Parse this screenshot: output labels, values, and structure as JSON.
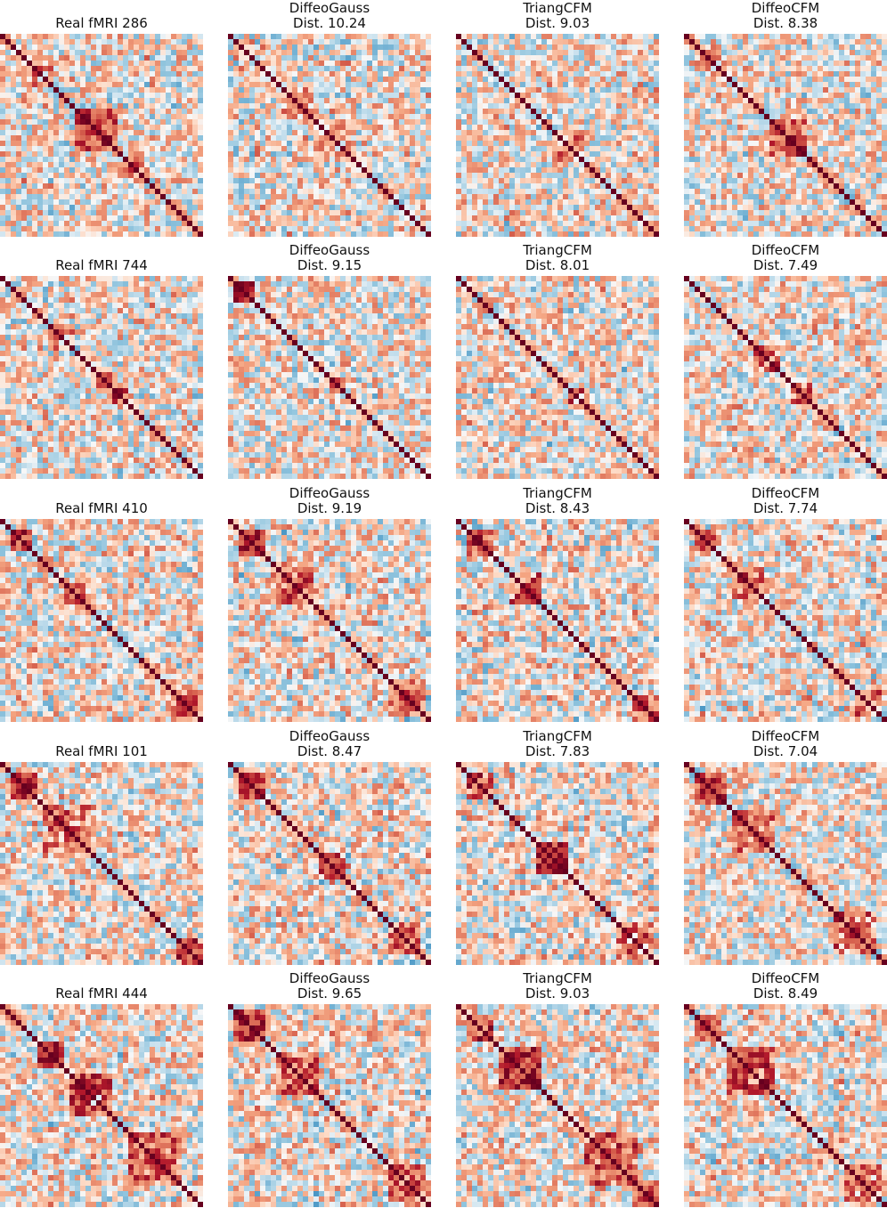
{
  "chart_data": [
    {
      "type": "heatmap",
      "row": 0,
      "col": 0,
      "title_line1": "Real fMRI 286",
      "title_line2": "",
      "matrix_size": 38,
      "seed": 286,
      "blocks": [
        [
          4,
          6,
          0.4
        ],
        [
          14,
          8,
          0.55
        ],
        [
          22,
          5,
          0.35
        ]
      ],
      "diag_color": "#67001f",
      "colorscale": "RdBu_r",
      "vlim": [
        -1,
        1
      ]
    },
    {
      "type": "heatmap",
      "row": 0,
      "col": 1,
      "title_line1": "DiffeoGauss",
      "title_line2": "Dist. 10.24",
      "matrix_size": 38,
      "seed": 1287,
      "blocks": [
        [
          10,
          6,
          0.25
        ]
      ],
      "diag_color": "#67001f",
      "colorscale": "RdBu_r",
      "vlim": [
        -1,
        1
      ]
    },
    {
      "type": "heatmap",
      "row": 0,
      "col": 2,
      "title_line1": "TriangCFM",
      "title_line2": "Dist. 9.03",
      "matrix_size": 38,
      "seed": 2288,
      "blocks": [
        [
          18,
          6,
          0.3
        ]
      ],
      "diag_color": "#67001f",
      "colorscale": "RdBu_r",
      "vlim": [
        -1,
        1
      ]
    },
    {
      "type": "heatmap",
      "row": 0,
      "col": 3,
      "title_line1": "DiffeoCFM",
      "title_line2": "Dist. 8.38",
      "matrix_size": 38,
      "seed": 3289,
      "blocks": [
        [
          16,
          7,
          0.65
        ],
        [
          2,
          5,
          0.35
        ]
      ],
      "diag_color": "#67001f",
      "colorscale": "RdBu_r",
      "vlim": [
        -1,
        1
      ]
    },
    {
      "type": "heatmap",
      "row": 1,
      "col": 0,
      "title_line1": "Real fMRI 744",
      "title_line2": "",
      "matrix_size": 38,
      "seed": 744,
      "blocks": [
        [
          18,
          3,
          0.7
        ],
        [
          21,
          3,
          0.75
        ],
        [
          10,
          4,
          0.3
        ]
      ],
      "diag_color": "#67001f",
      "colorscale": "RdBu_r",
      "vlim": [
        -1,
        1
      ]
    },
    {
      "type": "heatmap",
      "row": 1,
      "col": 1,
      "title_line1": "DiffeoGauss",
      "title_line2": "Dist. 9.15",
      "matrix_size": 38,
      "seed": 1745,
      "blocks": [
        [
          1,
          4,
          0.75
        ],
        [
          19,
          3,
          0.7
        ]
      ],
      "diag_color": "#67001f",
      "colorscale": "RdBu_r",
      "vlim": [
        -1,
        1
      ]
    },
    {
      "type": "heatmap",
      "row": 1,
      "col": 2,
      "title_line1": "TriangCFM",
      "title_line2": "Dist. 8.01",
      "matrix_size": 38,
      "seed": 2746,
      "blocks": [
        [
          21,
          4,
          0.45
        ]
      ],
      "diag_color": "#67001f",
      "colorscale": "RdBu_r",
      "vlim": [
        -1,
        1
      ]
    },
    {
      "type": "heatmap",
      "row": 1,
      "col": 3,
      "title_line1": "DiffeoCFM",
      "title_line2": "Dist. 7.49",
      "matrix_size": 38,
      "seed": 3747,
      "blocks": [
        [
          13,
          5,
          0.5
        ],
        [
          20,
          4,
          0.55
        ]
      ],
      "diag_color": "#67001f",
      "colorscale": "RdBu_r",
      "vlim": [
        -1,
        1
      ]
    },
    {
      "type": "heatmap",
      "row": 2,
      "col": 0,
      "title_line1": "Real fMRI 410",
      "title_line2": "",
      "matrix_size": 38,
      "seed": 410,
      "blocks": [
        [
          2,
          4,
          0.8
        ],
        [
          12,
          4,
          0.45
        ],
        [
          32,
          5,
          0.5
        ]
      ],
      "diag_color": "#67001f",
      "colorscale": "RdBu_r",
      "vlim": [
        -1,
        1
      ]
    },
    {
      "type": "heatmap",
      "row": 2,
      "col": 1,
      "title_line1": "DiffeoGauss",
      "title_line2": "Dist. 9.19",
      "matrix_size": 38,
      "seed": 1411,
      "blocks": [
        [
          2,
          5,
          0.7
        ],
        [
          8,
          8,
          0.5
        ],
        [
          30,
          7,
          0.45
        ]
      ],
      "diag_color": "#67001f",
      "colorscale": "RdBu_r",
      "vlim": [
        -1,
        1
      ]
    },
    {
      "type": "heatmap",
      "row": 2,
      "col": 2,
      "title_line1": "TriangCFM",
      "title_line2": "Dist. 8.43",
      "matrix_size": 38,
      "seed": 2412,
      "blocks": [
        [
          2,
          5,
          0.7
        ],
        [
          10,
          6,
          0.5
        ],
        [
          33,
          5,
          0.55
        ]
      ],
      "diag_color": "#67001f",
      "colorscale": "RdBu_r",
      "vlim": [
        -1,
        1
      ]
    },
    {
      "type": "heatmap",
      "row": 2,
      "col": 3,
      "title_line1": "DiffeoCFM",
      "title_line2": "Dist. 7.74",
      "matrix_size": 38,
      "seed": 3413,
      "blocks": [
        [
          2,
          4,
          0.6
        ],
        [
          9,
          6,
          0.45
        ],
        [
          32,
          5,
          0.4
        ]
      ],
      "diag_color": "#67001f",
      "colorscale": "RdBu_r",
      "vlim": [
        -1,
        1
      ]
    },
    {
      "type": "heatmap",
      "row": 3,
      "col": 0,
      "title_line1": "Real fMRI 101",
      "title_line2": "",
      "matrix_size": 38,
      "seed": 101,
      "blocks": [
        [
          2,
          5,
          0.75
        ],
        [
          8,
          10,
          0.45
        ],
        [
          33,
          5,
          0.6
        ]
      ],
      "diag_color": "#67001f",
      "colorscale": "RdBu_r",
      "vlim": [
        -1,
        1
      ]
    },
    {
      "type": "heatmap",
      "row": 3,
      "col": 1,
      "title_line1": "DiffeoGauss",
      "title_line2": "Dist. 8.47",
      "matrix_size": 38,
      "seed": 1102,
      "blocks": [
        [
          2,
          5,
          0.6
        ],
        [
          17,
          5,
          0.55
        ],
        [
          30,
          6,
          0.35
        ]
      ],
      "diag_color": "#67001f",
      "colorscale": "RdBu_r",
      "vlim": [
        -1,
        1
      ]
    },
    {
      "type": "heatmap",
      "row": 3,
      "col": 2,
      "title_line1": "TriangCFM",
      "title_line2": "Dist. 7.83",
      "matrix_size": 38,
      "seed": 2103,
      "blocks": [
        [
          2,
          5,
          0.7
        ],
        [
          15,
          6,
          0.8
        ],
        [
          30,
          7,
          0.45
        ]
      ],
      "diag_color": "#67001f",
      "colorscale": "RdBu_r",
      "vlim": [
        -1,
        1
      ]
    },
    {
      "type": "heatmap",
      "row": 3,
      "col": 3,
      "title_line1": "DiffeoCFM",
      "title_line2": "Dist. 7.04",
      "matrix_size": 38,
      "seed": 3104,
      "blocks": [
        [
          2,
          6,
          0.65
        ],
        [
          9,
          8,
          0.5
        ],
        [
          28,
          8,
          0.5
        ]
      ],
      "diag_color": "#67001f",
      "colorscale": "RdBu_r",
      "vlim": [
        -1,
        1
      ]
    },
    {
      "type": "heatmap",
      "row": 4,
      "col": 0,
      "title_line1": "Real fMRI 444",
      "title_line2": "",
      "matrix_size": 38,
      "seed": 444,
      "blocks": [
        [
          1,
          3,
          0.6
        ],
        [
          7,
          5,
          0.95
        ],
        [
          13,
          8,
          0.6
        ],
        [
          24,
          10,
          0.45
        ]
      ],
      "diag_color": "#67001f",
      "colorscale": "RdBu_r",
      "vlim": [
        -1,
        1
      ]
    },
    {
      "type": "heatmap",
      "row": 4,
      "col": 1,
      "title_line1": "DiffeoGauss",
      "title_line2": "Dist. 9.65",
      "matrix_size": 38,
      "seed": 1445,
      "blocks": [
        [
          1,
          6,
          0.7
        ],
        [
          9,
          8,
          0.5
        ],
        [
          30,
          7,
          0.5
        ]
      ],
      "diag_color": "#67001f",
      "colorscale": "RdBu_r",
      "vlim": [
        -1,
        1
      ]
    },
    {
      "type": "heatmap",
      "row": 4,
      "col": 2,
      "title_line1": "TriangCFM",
      "title_line2": "Dist. 9.03",
      "matrix_size": 38,
      "seed": 2446,
      "blocks": [
        [
          2,
          5,
          0.7
        ],
        [
          8,
          8,
          0.7
        ],
        [
          24,
          10,
          0.5
        ],
        [
          33,
          5,
          0.6
        ]
      ],
      "diag_color": "#67001f",
      "colorscale": "RdBu_r",
      "vlim": [
        -1,
        1
      ]
    },
    {
      "type": "heatmap",
      "row": 4,
      "col": 3,
      "title_line1": "DiffeoCFM",
      "title_line2": "Dist. 8.49",
      "matrix_size": 38,
      "seed": 3447,
      "blocks": [
        [
          2,
          5,
          0.6
        ],
        [
          8,
          9,
          0.5
        ],
        [
          30,
          7,
          0.45
        ]
      ],
      "diag_color": "#67001f",
      "colorscale": "RdBu_r",
      "vlim": [
        -1,
        1
      ]
    }
  ]
}
